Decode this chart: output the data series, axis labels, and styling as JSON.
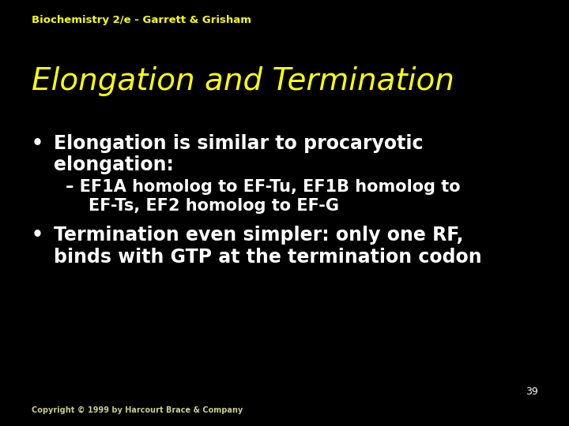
{
  "background_color": "#000000",
  "header_text": "Biochemistry 2/e - Garrett & Grisham",
  "header_color": "#ffff00",
  "header_fontsize": 9.5,
  "header_fontweight": "bold",
  "title_text": "Elongation and Termination",
  "title_color": "#ffff00",
  "title_fontsize": 28,
  "title_style": "italic",
  "title_font": "sans-serif",
  "bullet1_text1": "Elongation is similar to procaryotic",
  "bullet1_text2": "elongation:",
  "sub_bullet_text1": "– EF1A homolog to EF-Tu, EF1B homolog to",
  "sub_bullet_text2": "    EF-Ts, EF2 homolog to EF-G",
  "bullet2_text1": "Termination even simpler: only one RF,",
  "bullet2_text2": "binds with GTP at the termination codon",
  "body_color": "#ffffff",
  "body_fontsize": 17,
  "body_fontweight": "bold",
  "sub_fontsize": 15,
  "sub_fontweight": "bold",
  "bullet_symbol": "•",
  "page_number": "39",
  "page_number_color": "#ffffff",
  "page_number_fontsize": 9,
  "footer_text": "Copyright © 1999 by Harcourt Brace & Company",
  "footer_color": "#cccc88",
  "footer_fontsize": 7
}
